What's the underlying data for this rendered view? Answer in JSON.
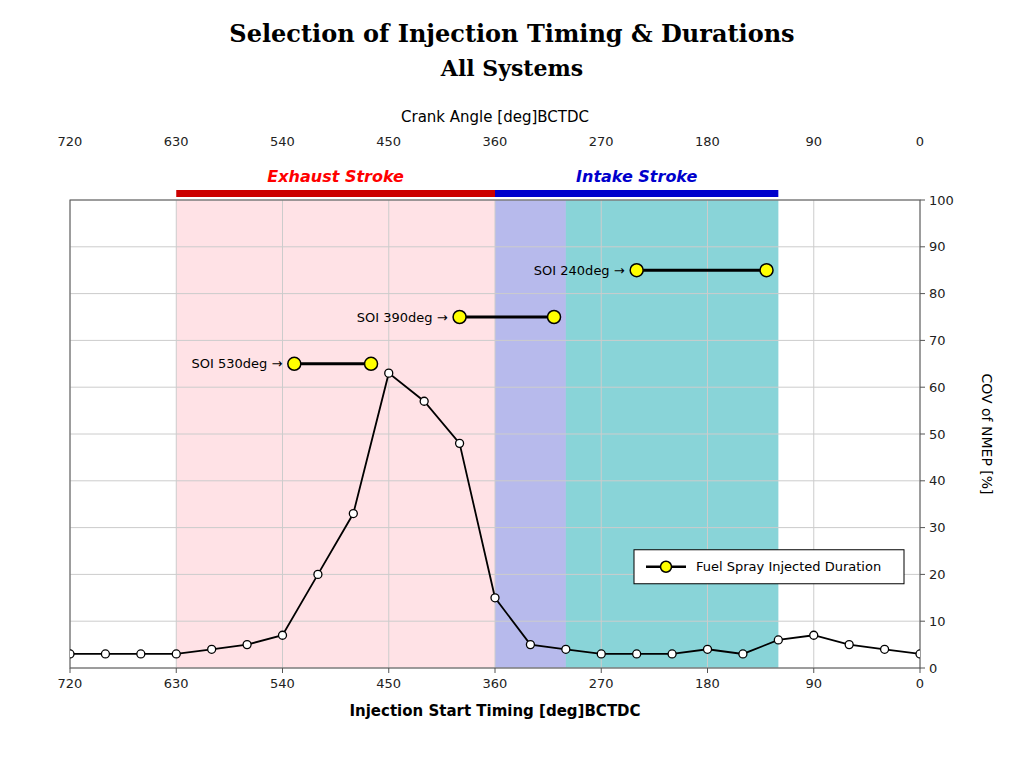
{
  "chart_data": {
    "type": "line",
    "title": "Selection of Injection Timing & Durations",
    "subtitle": "All Systems",
    "xlabel": "Injection Start Timing [deg]BCTDC",
    "xlabel_top": "Crank Angle [deg]BCTDC",
    "ylabel": "COV of NMEP [%]",
    "xlim": [
      720,
      0
    ],
    "xticks": [
      720,
      630,
      540,
      450,
      360,
      270,
      180,
      90,
      0
    ],
    "ylim": [
      0,
      100
    ],
    "yticks": [
      0,
      10,
      20,
      30,
      40,
      50,
      60,
      70,
      80,
      90,
      100
    ],
    "grid": true,
    "legend": "lower right",
    "x": [
      720,
      690,
      660,
      630,
      600,
      570,
      540,
      510,
      480,
      450,
      420,
      390,
      360,
      330,
      300,
      270,
      240,
      210,
      180,
      150,
      120,
      90,
      60,
      30,
      0
    ],
    "series": [
      {
        "color": "#000000",
        "marker": "circle",
        "values": [
          3,
          3,
          3,
          3,
          4,
          5,
          7,
          20,
          33,
          63,
          57,
          48,
          15,
          5,
          4,
          3,
          3,
          3,
          4,
          3,
          6,
          7,
          5,
          4,
          3
        ]
      }
    ],
    "regions": [
      {
        "x": [
          630,
          360
        ],
        "color": "#ffb6c1"
      },
      {
        "x": [
          360,
          120
        ],
        "color": "#87ceeb"
      },
      {
        "x": [
          360,
          300
        ],
        "color": "#9370DB"
      },
      {
        "x": [
          300,
          120
        ],
        "color": "#20B2AA"
      }
    ],
    "stroke_bars": [
      {
        "label": "Exhaust Stroke",
        "x": [
          630,
          360
        ],
        "color": "#cc0000",
        "label_color": "#ff0000"
      },
      {
        "label": "Intake Stroke",
        "x": [
          360,
          120
        ],
        "color": "#0000cc",
        "label_color": "#0000cc"
      }
    ],
    "durations": {
      "name": "Fuel Spray Injected Duration",
      "color": "#000000",
      "marker_color": "#ffff00",
      "items": [
        {
          "label": "SOI 530deg →",
          "x_start": 530,
          "x_end": 465,
          "y": 65
        },
        {
          "label": "SOI 390deg →",
          "x_start": 390,
          "x_end": 310,
          "y": 75
        },
        {
          "label": "SOI 240deg →",
          "x_start": 240,
          "x_end": 130,
          "y": 85
        }
      ]
    }
  }
}
